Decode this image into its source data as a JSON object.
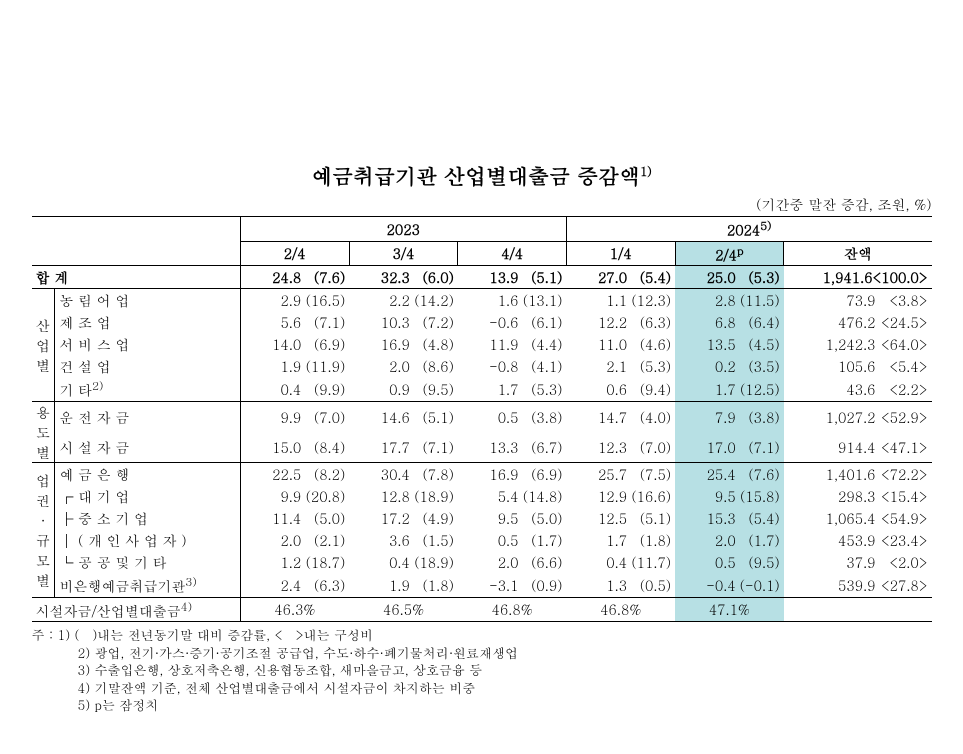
{
  "title": "예금취급기관 산업별대출금 증감액",
  "title_sup": "1)",
  "unit_note": "(기간중 말잔 증감, 조원, %)",
  "year_headers": {
    "y2023": "2023",
    "y2024": "2024",
    "y2024_sup": "5)"
  },
  "period_headers": {
    "p1": "2/4",
    "p2": "3/4",
    "p3": "4/4",
    "p4": "1/4",
    "p5": "2/4",
    "p5_sup": "p",
    "p6": "잔액"
  },
  "row_labels": {
    "total": "합                      계",
    "g1": "산업별",
    "g2": "용도별",
    "g3": "업권·규모별",
    "r1": "농   림   어   업",
    "r2": "제     조     업",
    "r3": "서   비   스   업",
    "r4": "건     설     업",
    "r5": "기            타",
    "r5_sup": "2)",
    "r6": "운  전  자  금",
    "r7": "시  설  자  금",
    "r8": "예  금  은  행",
    "r9": "┌  대   기   업",
    "r10": "├  중 소 기 업",
    "r11": "│ ( 개 인 사 업 자 )",
    "r12": "└  공 공  및  기 타",
    "r13": "비은행예금취급기관",
    "r13_sup": "3)",
    "ratio": "시설자금/산업별대출금",
    "ratio_sup": "4)"
  },
  "rows": {
    "total": {
      "c1v": "24.8",
      "c1p": "(7.6)",
      "c2v": "32.3",
      "c2p": "(6.0)",
      "c3v": "13.9",
      "c3p": "(5.1)",
      "c4v": "27.0",
      "c4p": "(5.4)",
      "c5v": "25.0",
      "c5p": "(5.3)",
      "balv": "1,941.6",
      "balp": "<100.0>"
    },
    "r1": {
      "c1v": "2.9",
      "c1p": "(16.5)",
      "c2v": "2.2",
      "c2p": "(14.2)",
      "c3v": "1.6",
      "c3p": "(13.1)",
      "c4v": "1.1",
      "c4p": "(12.3)",
      "c5v": "2.8",
      "c5p": "(11.5)",
      "balv": "73.9",
      "balp": "<3.8>"
    },
    "r2": {
      "c1v": "5.6",
      "c1p": "(7.1)",
      "c2v": "10.3",
      "c2p": "(7.2)",
      "c3v": "-0.6",
      "c3p": "(6.1)",
      "c4v": "12.2",
      "c4p": "(6.3)",
      "c5v": "6.8",
      "c5p": "(6.4)",
      "balv": "476.2",
      "balp": "<24.5>"
    },
    "r3": {
      "c1v": "14.0",
      "c1p": "(6.9)",
      "c2v": "16.9",
      "c2p": "(4.8)",
      "c3v": "11.9",
      "c3p": "(4.4)",
      "c4v": "11.0",
      "c4p": "(4.6)",
      "c5v": "13.5",
      "c5p": "(4.5)",
      "balv": "1,242.3",
      "balp": "<64.0>"
    },
    "r4": {
      "c1v": "1.9",
      "c1p": "(11.9)",
      "c2v": "2.0",
      "c2p": "(8.6)",
      "c3v": "-0.8",
      "c3p": "(4.1)",
      "c4v": "2.1",
      "c4p": "(5.3)",
      "c5v": "0.2",
      "c5p": "(3.5)",
      "balv": "105.6",
      "balp": "<5.4>"
    },
    "r5": {
      "c1v": "0.4",
      "c1p": "(9.9)",
      "c2v": "0.9",
      "c2p": "(9.5)",
      "c3v": "1.7",
      "c3p": "(5.3)",
      "c4v": "0.6",
      "c4p": "(9.4)",
      "c5v": "1.7",
      "c5p": "(12.5)",
      "balv": "43.6",
      "balp": "<2.2>"
    },
    "r6": {
      "c1v": "9.9",
      "c1p": "(7.0)",
      "c2v": "14.6",
      "c2p": "(5.1)",
      "c3v": "0.5",
      "c3p": "(3.8)",
      "c4v": "14.7",
      "c4p": "(4.0)",
      "c5v": "7.9",
      "c5p": "(3.8)",
      "balv": "1,027.2",
      "balp": "<52.9>"
    },
    "r7": {
      "c1v": "15.0",
      "c1p": "(8.4)",
      "c2v": "17.7",
      "c2p": "(7.1)",
      "c3v": "13.3",
      "c3p": "(6.7)",
      "c4v": "12.3",
      "c4p": "(7.0)",
      "c5v": "17.0",
      "c5p": "(7.1)",
      "balv": "914.4",
      "balp": "<47.1>"
    },
    "r8": {
      "c1v": "22.5",
      "c1p": "(8.2)",
      "c2v": "30.4",
      "c2p": "(7.8)",
      "c3v": "16.9",
      "c3p": "(6.9)",
      "c4v": "25.7",
      "c4p": "(7.5)",
      "c5v": "25.4",
      "c5p": "(7.6)",
      "balv": "1,401.6",
      "balp": "<72.2>"
    },
    "r9": {
      "c1v": "9.9",
      "c1p": "(20.8)",
      "c2v": "12.8",
      "c2p": "(18.9)",
      "c3v": "5.4",
      "c3p": "(14.8)",
      "c4v": "12.9",
      "c4p": "(16.6)",
      "c5v": "9.5",
      "c5p": "(15.8)",
      "balv": "298.3",
      "balp": "<15.4>"
    },
    "r10": {
      "c1v": "11.4",
      "c1p": "(5.0)",
      "c2v": "17.2",
      "c2p": "(4.9)",
      "c3v": "9.5",
      "c3p": "(5.0)",
      "c4v": "12.5",
      "c4p": "(5.1)",
      "c5v": "15.3",
      "c5p": "(5.4)",
      "balv": "1,065.4",
      "balp": "<54.9>"
    },
    "r11": {
      "c1v": "2.0",
      "c1p": "(2.1)",
      "c2v": "3.6",
      "c2p": "(1.5)",
      "c3v": "0.5",
      "c3p": "(1.7)",
      "c4v": "1.7",
      "c4p": "(1.8)",
      "c5v": "2.0",
      "c5p": "(1.7)",
      "balv": "453.9",
      "balp": "<23.4>"
    },
    "r12": {
      "c1v": "1.2",
      "c1p": "(18.7)",
      "c2v": "0.4",
      "c2p": "(18.9)",
      "c3v": "2.0",
      "c3p": "(6.6)",
      "c4v": "0.4",
      "c4p": "(11.7)",
      "c5v": "0.5",
      "c5p": "(9.5)",
      "balv": "37.9",
      "balp": "<2.0>"
    },
    "r13": {
      "c1v": "2.4",
      "c1p": "(6.3)",
      "c2v": "1.9",
      "c2p": "(1.8)",
      "c3v": "-3.1",
      "c3p": "(0.9)",
      "c4v": "1.3",
      "c4p": "(0.5)",
      "c5v": "-0.4",
      "c5p": "(-0.1)",
      "balv": "539.9",
      "balp": "<27.8>"
    }
  },
  "ratio_row": {
    "c1": "46.3%",
    "c2": "46.5%",
    "c3": "46.8%",
    "c4": "46.8%",
    "c5": "47.1%"
  },
  "notes": {
    "lead": "주 : 1) (　)내는 전년동기말 대비 증감률, <　>내는 구성비",
    "n2": "2) 광업, 전기·가스·증기·공기조절 공급업, 수도·하수·폐기물처리·원료재생업",
    "n3": "3) 수출입은행, 상호저축은행, 신용협동조합, 새마을금고, 상호금융 등",
    "n4": "4) 기말잔액 기준, 전체 산업별대출금에서 시설자금이 차지하는 비중",
    "n5": "5) p는 잠정치"
  },
  "style": {
    "highlight_color": "#b7e0e4",
    "border_color": "#000000",
    "background": "#ffffff",
    "font_size_body": 14,
    "font_size_title": 21
  }
}
